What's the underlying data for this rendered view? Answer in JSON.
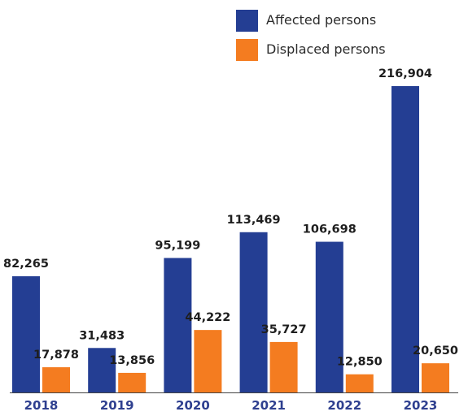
{
  "chart_data": {
    "type": "bar",
    "title": "",
    "xlabel": "",
    "ylabel": "",
    "categories": [
      "2018",
      "2019",
      "2020",
      "2021",
      "2022",
      "2023"
    ],
    "series": [
      {
        "name": "Affected persons",
        "color": "#243e93",
        "values": [
          82265,
          31483,
          95199,
          113469,
          106698,
          216904
        ],
        "labels": [
          "82,265",
          "31,483",
          "95,199",
          "113,469",
          "106,698",
          "216,904"
        ]
      },
      {
        "name": "Displaced persons",
        "color": "#f47c20",
        "values": [
          17878,
          13856,
          44222,
          35727,
          12850,
          20650
        ],
        "labels": [
          "17,878",
          "13,856",
          "44,222",
          "35,727",
          "12,850",
          "20,650"
        ]
      }
    ],
    "ylim": [
      0,
      216904
    ],
    "grid": false,
    "legend_position": "top-right",
    "tick_label_color": "#2e3f8f",
    "axis_color": "#444444"
  }
}
